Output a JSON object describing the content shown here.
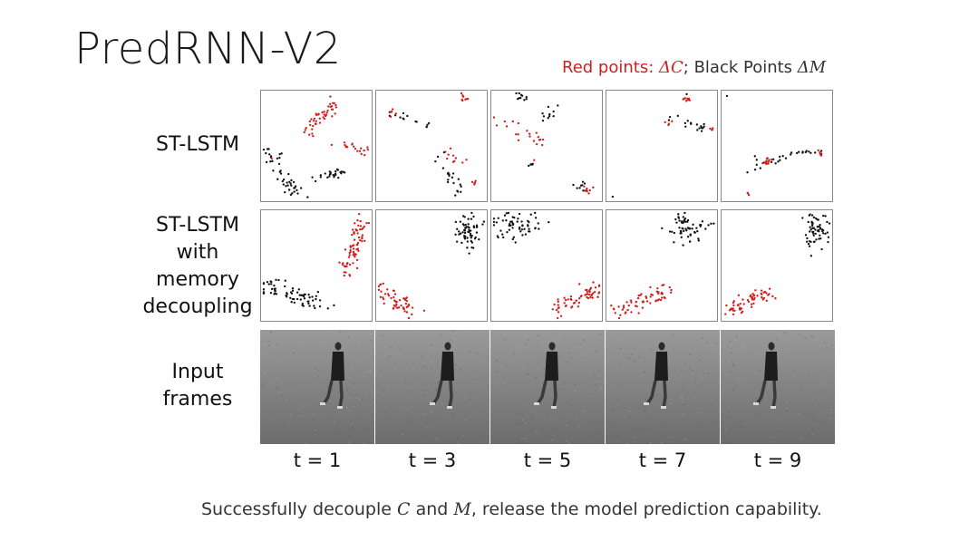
{
  "slide": {
    "title": "PredRNN-V2",
    "legend": {
      "red_text": "Red points: ",
      "red_math": "ΔC",
      "separator": "; Black Points ",
      "black_math": "ΔM",
      "red_color": "#d11f1f",
      "black_color": "#111111"
    },
    "rows": [
      {
        "label_lines": [
          "ST-LSTM"
        ]
      },
      {
        "label_lines": [
          "ST-LSTM",
          "with",
          "memory",
          "decoupling"
        ]
      },
      {
        "label_lines": [
          "Input",
          "frames"
        ]
      }
    ],
    "time_labels": [
      "t = 1",
      "t = 3",
      "t = 5",
      "t = 7",
      "t = 9"
    ],
    "caption": {
      "part1": "Successfully decouple ",
      "c": "C",
      "part2": " and ",
      "m": "M",
      "part3": ", release the model prediction capability."
    }
  }
}
